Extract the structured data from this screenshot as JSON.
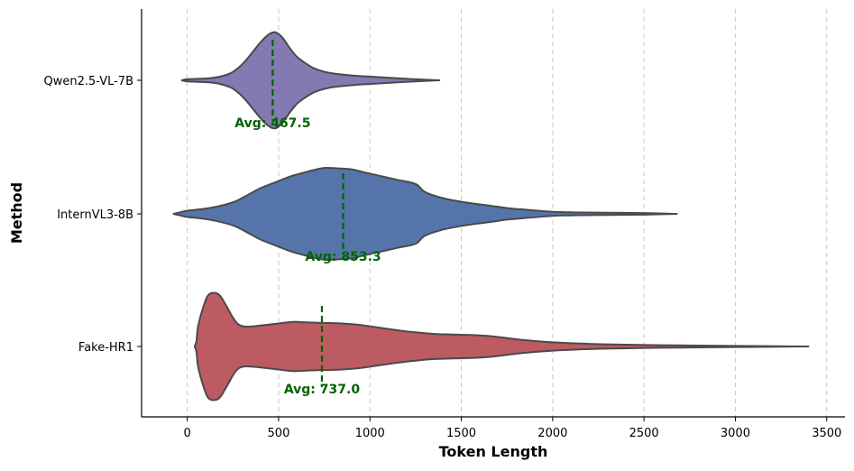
{
  "chart_data": {
    "type": "violin",
    "orientation": "horizontal",
    "xlabel": "Token Length",
    "ylabel": "Method",
    "xlim": [
      -250,
      3600
    ],
    "x_ticks": [
      0,
      500,
      1000,
      1500,
      2000,
      2500,
      3000,
      3500
    ],
    "grid": "vertical dashed",
    "categories": [
      "Qwen2.5-VL-7B",
      "InternVL3-8B",
      "Fake-HR1"
    ],
    "series": [
      {
        "name": "Qwen2.5-VL-7B",
        "color": "#8479b1",
        "mean": 467.5,
        "mean_label": "Avg: 467.5",
        "density": [
          [
            -30,
            0.0
          ],
          [
            0,
            0.02
          ],
          [
            70,
            0.03
          ],
          [
            120,
            0.04
          ],
          [
            180,
            0.07
          ],
          [
            240,
            0.14
          ],
          [
            280,
            0.24
          ],
          [
            320,
            0.38
          ],
          [
            360,
            0.55
          ],
          [
            400,
            0.72
          ],
          [
            440,
            0.86
          ],
          [
            480,
            0.92
          ],
          [
            520,
            0.82
          ],
          [
            560,
            0.62
          ],
          [
            600,
            0.45
          ],
          [
            650,
            0.32
          ],
          [
            700,
            0.22
          ],
          [
            780,
            0.14
          ],
          [
            880,
            0.1
          ],
          [
            950,
            0.08
          ],
          [
            1050,
            0.06
          ],
          [
            1150,
            0.04
          ],
          [
            1250,
            0.02
          ],
          [
            1380,
            0.0
          ]
        ]
      },
      {
        "name": "InternVL3-8B",
        "color": "#5575aa",
        "mean": 853.3,
        "mean_label": "Avg: 853.3",
        "density": [
          [
            -75,
            0.0
          ],
          [
            -40,
            0.03
          ],
          [
            0,
            0.06
          ],
          [
            80,
            0.09
          ],
          [
            150,
            0.13
          ],
          [
            250,
            0.22
          ],
          [
            320,
            0.34
          ],
          [
            400,
            0.49
          ],
          [
            480,
            0.6
          ],
          [
            560,
            0.71
          ],
          [
            640,
            0.79
          ],
          [
            720,
            0.86
          ],
          [
            760,
            0.88
          ],
          [
            820,
            0.87
          ],
          [
            900,
            0.85
          ],
          [
            960,
            0.8
          ],
          [
            1050,
            0.73
          ],
          [
            1150,
            0.65
          ],
          [
            1250,
            0.57
          ],
          [
            1300,
            0.42
          ],
          [
            1400,
            0.3
          ],
          [
            1520,
            0.22
          ],
          [
            1650,
            0.16
          ],
          [
            1750,
            0.11
          ],
          [
            1850,
            0.08
          ],
          [
            2000,
            0.04
          ],
          [
            2100,
            0.03
          ],
          [
            2300,
            0.02
          ],
          [
            2500,
            0.015
          ],
          [
            2680,
            0.0
          ]
        ]
      },
      {
        "name": "Fake-HR1",
        "color": "#bd5b62",
        "mean": 737.0,
        "mean_label": "Avg: 737.0",
        "density": [
          [
            40,
            0.0
          ],
          [
            50,
            0.1
          ],
          [
            60,
            0.4
          ],
          [
            90,
            0.78
          ],
          [
            120,
            1.0
          ],
          [
            170,
            1.0
          ],
          [
            210,
            0.8
          ],
          [
            250,
            0.55
          ],
          [
            280,
            0.42
          ],
          [
            320,
            0.38
          ],
          [
            400,
            0.4
          ],
          [
            500,
            0.44
          ],
          [
            580,
            0.47
          ],
          [
            650,
            0.46
          ],
          [
            750,
            0.45
          ],
          [
            850,
            0.44
          ],
          [
            950,
            0.41
          ],
          [
            1050,
            0.36
          ],
          [
            1150,
            0.31
          ],
          [
            1250,
            0.27
          ],
          [
            1350,
            0.24
          ],
          [
            1450,
            0.23
          ],
          [
            1550,
            0.22
          ],
          [
            1650,
            0.2
          ],
          [
            1750,
            0.16
          ],
          [
            1850,
            0.12
          ],
          [
            2000,
            0.08
          ],
          [
            2200,
            0.05
          ],
          [
            2400,
            0.035
          ],
          [
            2700,
            0.02
          ],
          [
            3000,
            0.01
          ],
          [
            3400,
            0.0
          ]
        ]
      }
    ]
  }
}
